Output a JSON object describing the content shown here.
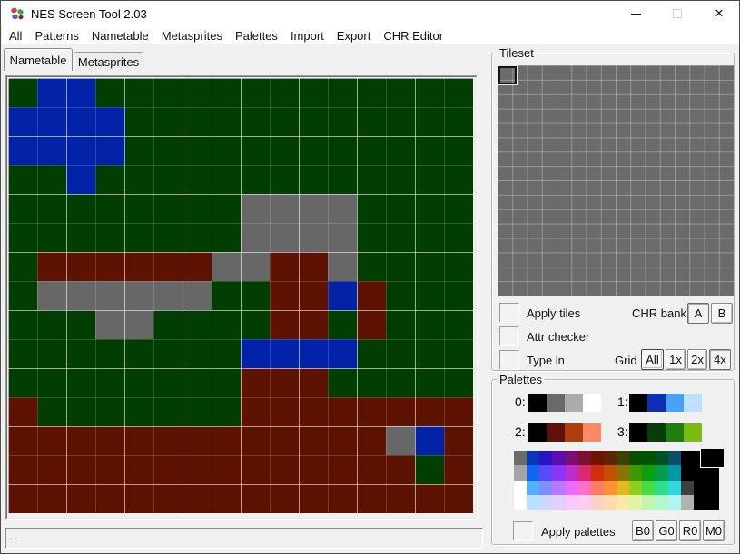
{
  "window": {
    "title": "NES Screen Tool 2.03",
    "minimize_glyph": "—",
    "close_glyph": "✕"
  },
  "menu": {
    "items": [
      "All",
      "Patterns",
      "Nametable",
      "Metasprites",
      "Palettes",
      "Import",
      "Export",
      "CHR Editor"
    ]
  },
  "tabs": [
    "Nametable",
    "Metasprites"
  ],
  "statusbar": {
    "text": "---"
  },
  "nametable": {
    "tile_colors": {
      "g": "#023E02",
      "b": "#0223A8",
      "r": "#5E1302",
      "s": "#676767"
    },
    "rows": [
      "gbbggggggggggggg",
      "bbbbgggggggggggg",
      "bbbbgggggggggggg",
      "ggbggggggggggggg",
      "ggggggggssssgggg",
      "ggggggggssssgggg",
      "grrrrrrssrrsgggg",
      "gssssssggrrbrggg",
      "gggssggggrrgrggg",
      "ggggggggbbbbgggg",
      "ggggggggrrrggggg",
      "rgggggggrrrrrrrr",
      "rrrrrrrrrrrrrsbr",
      "rrrrrrrrrrrrrrgr",
      "rrrrrrrrrrrrrrrr"
    ]
  },
  "tileset": {
    "label": "Tileset",
    "bg_color": "#6B6B6B",
    "apply_tiles_label": "Apply tiles",
    "chr_bank_label": "CHR bank",
    "bank_buttons": [
      "A",
      "B"
    ],
    "active_bank": "A",
    "attr_checker_label": "Attr checker",
    "type_in_label": "Type in",
    "grid_label": "Grid",
    "grid_buttons": [
      "All",
      "1x",
      "2x",
      "4x"
    ],
    "active_grid": "4x"
  },
  "palettes": {
    "label": "Palettes",
    "apply_label": "Apply palettes",
    "action_buttons": [
      "B0",
      "G0",
      "R0",
      "M0"
    ],
    "selected_color": "#000000",
    "rows": [
      {
        "label": "0:",
        "colors": [
          "#000000",
          "#696969",
          "#ABABAB",
          "#FFFFFF"
        ]
      },
      {
        "label": "1:",
        "colors": [
          "#000000",
          "#0D2EAE",
          "#47A3F2",
          "#BEE0FB"
        ]
      },
      {
        "label": "2:",
        "colors": [
          "#000000",
          "#5C130A",
          "#B33C0E",
          "#FA8A63"
        ]
      },
      {
        "label": "3:",
        "colors": [
          "#000000",
          "#073D07",
          "#217D12",
          "#79BD10"
        ]
      }
    ],
    "master": [
      "#6B6B6B",
      "#0D36B5",
      "#2A15C4",
      "#5C0EAC",
      "#7A0F6E",
      "#7A1230",
      "#6E1500",
      "#5C2600",
      "#3F4100",
      "#0B4E00",
      "#005400",
      "#00521E",
      "#0A4E68",
      "#000000",
      "#000000",
      "#000000",
      "#A5A5A5",
      "#1166F2",
      "#5A48FB",
      "#8D35F6",
      "#C32BC8",
      "#DC2A6E",
      "#D42D0A",
      "#BF5300",
      "#8C7200",
      "#3D9900",
      "#0C9F0C",
      "#009D4C",
      "#0098A8",
      "#000000",
      "#000000",
      "#000000",
      "#FFFFFF",
      "#55AEFF",
      "#7E8DFF",
      "#B878FF",
      "#EC6BFF",
      "#FF6FC9",
      "#FF7B63",
      "#FB9430",
      "#E1BA1F",
      "#8ED020",
      "#47DA47",
      "#30DC8E",
      "#2FD8DF",
      "#3F3F3F",
      "#000000",
      "#000000",
      "#FFFFFF",
      "#B7E3FF",
      "#CDD8FF",
      "#E2CEFF",
      "#F8C9FF",
      "#FFCBEE",
      "#FFCEC5",
      "#FFDBAE",
      "#FEE8A8",
      "#E0F4A4",
      "#C0F6AE",
      "#B0F8CA",
      "#AFF5F0",
      "#B2B2B2",
      "#000000",
      "#000000"
    ]
  }
}
